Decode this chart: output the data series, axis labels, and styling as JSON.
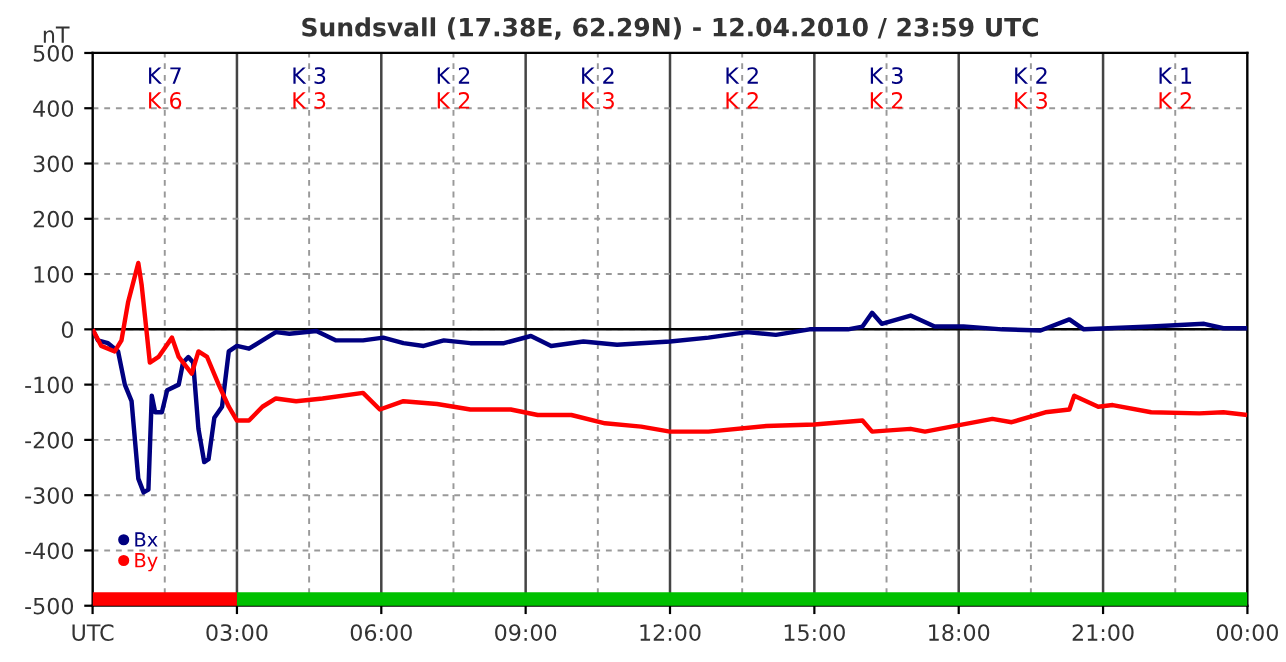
{
  "chart_data": {
    "type": "line",
    "title": "Sundsvall (17.38E, 62.29N) - 12.04.2010 / 23:59 UTC",
    "ylabel": "nT",
    "xlim": [
      0,
      24
    ],
    "xticks": [
      {
        "value": 0,
        "label": "UTC"
      },
      {
        "value": 3,
        "label": "03:00"
      },
      {
        "value": 6,
        "label": "06:00"
      },
      {
        "value": 9,
        "label": "09:00"
      },
      {
        "value": 12,
        "label": "12:00"
      },
      {
        "value": 15,
        "label": "15:00"
      },
      {
        "value": 18,
        "label": "18:00"
      },
      {
        "value": 21,
        "label": "21:00"
      },
      {
        "value": 24,
        "label": "00:00"
      }
    ],
    "ylim": [
      -500,
      500
    ],
    "yticks": [
      -500,
      -400,
      -300,
      -200,
      -100,
      0,
      100,
      200,
      300,
      400,
      500
    ],
    "grid": true,
    "legend": "bottom left",
    "marker": "none",
    "line_style": "solid",
    "ref_lines": [
      {
        "axis": "y",
        "value": 0,
        "color": "#000000"
      }
    ],
    "annotations": [
      "K 7",
      "K 6",
      "K 3",
      "K 3",
      "K 2",
      "K 2",
      "K 2",
      "K 3",
      "K 2",
      "K 2",
      "K 3",
      "K 2",
      "K 2",
      "K 3",
      "K 1",
      "K 2"
    ],
    "series": [
      {
        "name": "Bx",
        "color": "#000080",
        "x": [
          0,
          0.11,
          0.32,
          0.53,
          0.67,
          0.81,
          0.95,
          1.06,
          1.16,
          1.23,
          1.3,
          1.44,
          1.55,
          1.79,
          1.88,
          1.99,
          2.09,
          2.2,
          2.32,
          2.41,
          2.53,
          2.69,
          2.83,
          3.0,
          3.25,
          3.53,
          3.81,
          4.09,
          4.65,
          5.06,
          5.62,
          6.04,
          6.46,
          6.88,
          7.3,
          7.85,
          8.55,
          9.11,
          9.53,
          10.2,
          10.9,
          11.4,
          12.0,
          12.8,
          13.6,
          14.2,
          14.9,
          15.7,
          16.0,
          16.2,
          16.4,
          17.0,
          17.5,
          18.1,
          18.9,
          19.7,
          20.3,
          20.6,
          22.0,
          23.1,
          23.5,
          24
        ],
        "values": [
          0,
          -20,
          -25,
          -40,
          -100,
          -130,
          -270,
          -295,
          -290,
          -120,
          -150,
          -150,
          -110,
          -100,
          -60,
          -50,
          -60,
          -180,
          -240,
          -235,
          -160,
          -140,
          -40,
          -30,
          -35,
          -20,
          -5,
          -8,
          -3,
          -20,
          -20,
          -15,
          -25,
          -30,
          -20,
          -25,
          -25,
          -12,
          -30,
          -22,
          -28,
          -25,
          -22,
          -15,
          -5,
          -10,
          0,
          0,
          5,
          30,
          10,
          25,
          5,
          5,
          0,
          -2,
          18,
          0,
          5,
          10,
          2,
          2
        ]
      },
      {
        "name": "By",
        "color": "#ff0000",
        "x": [
          0,
          0.18,
          0.46,
          0.6,
          0.74,
          0.95,
          1.02,
          1.19,
          1.37,
          1.65,
          1.79,
          2.06,
          2.2,
          2.38,
          2.62,
          2.83,
          3.0,
          3.25,
          3.53,
          3.81,
          4.23,
          4.78,
          5.62,
          5.97,
          6.46,
          7.16,
          7.85,
          8.69,
          9.25,
          9.95,
          10.65,
          11.4,
          12.0,
          12.8,
          14.0,
          15.0,
          16.0,
          16.2,
          17.0,
          17.3,
          17.9,
          18.7,
          19.1,
          19.8,
          20.3,
          20.4,
          20.9,
          21.2,
          22.0,
          23.0,
          23.5,
          24
        ],
        "values": [
          0,
          -30,
          -40,
          -20,
          50,
          120,
          80,
          -60,
          -50,
          -15,
          -50,
          -80,
          -40,
          -50,
          -100,
          -140,
          -165,
          -165,
          -140,
          -125,
          -130,
          -125,
          -115,
          -145,
          -130,
          -135,
          -145,
          -145,
          -155,
          -155,
          -170,
          -176,
          -185,
          -185,
          -175,
          -172,
          -165,
          -185,
          -180,
          -185,
          -175,
          -162,
          -168,
          -150,
          -145,
          -120,
          -140,
          -137,
          -150,
          -152,
          -150,
          -155
        ]
      },
      {
        "type": "line",
        "color": "#ff0000",
        "x": [
          0,
          3
        ],
        "values": [
          -488,
          -488
        ]
      },
      {
        "type": "line",
        "color": "#00c000",
        "x": [
          3,
          24
        ],
        "values": [
          -488,
          -488
        ]
      }
    ]
  }
}
